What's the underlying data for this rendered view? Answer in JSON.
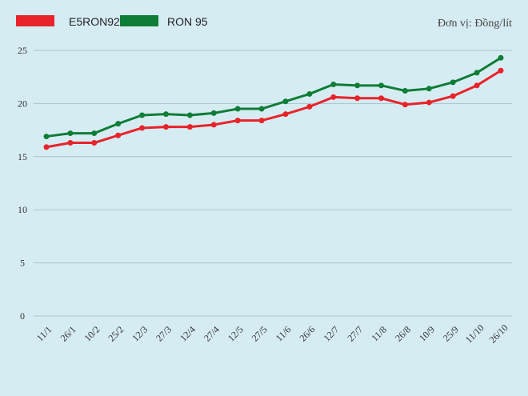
{
  "chart_data": {
    "type": "line",
    "title": "",
    "unit_note": "Đơn vị: Đồng/lít",
    "xlabel": "",
    "ylabel": "",
    "ylim": [
      0,
      25
    ],
    "yticks": [
      0,
      5,
      10,
      15,
      20,
      25
    ],
    "grid": true,
    "legend": "top-left",
    "categories": [
      "11/1",
      "26/1",
      "10/2",
      "25/2",
      "12/3",
      "27/3",
      "12/4",
      "27/4",
      "12/5",
      "27/5",
      "11/6",
      "26/6",
      "12/7",
      "27/7",
      "11/8",
      "26/8",
      "10/9",
      "25/9",
      "11/10",
      "26/10"
    ],
    "series": [
      {
        "name": "E5RON92",
        "color": "#e8232a",
        "values": [
          15.9,
          16.3,
          16.3,
          17.0,
          17.7,
          17.8,
          17.8,
          18.0,
          18.4,
          18.4,
          19.0,
          19.7,
          20.6,
          20.5,
          20.5,
          19.9,
          20.1,
          20.7,
          21.7,
          23.1
        ]
      },
      {
        "name": "RON 95",
        "color": "#0e7d36",
        "values": [
          16.9,
          17.2,
          17.2,
          18.1,
          18.9,
          19.0,
          18.9,
          19.1,
          19.5,
          19.5,
          20.2,
          20.9,
          21.8,
          21.7,
          21.7,
          21.2,
          21.4,
          22.0,
          22.9,
          24.3
        ]
      }
    ]
  }
}
